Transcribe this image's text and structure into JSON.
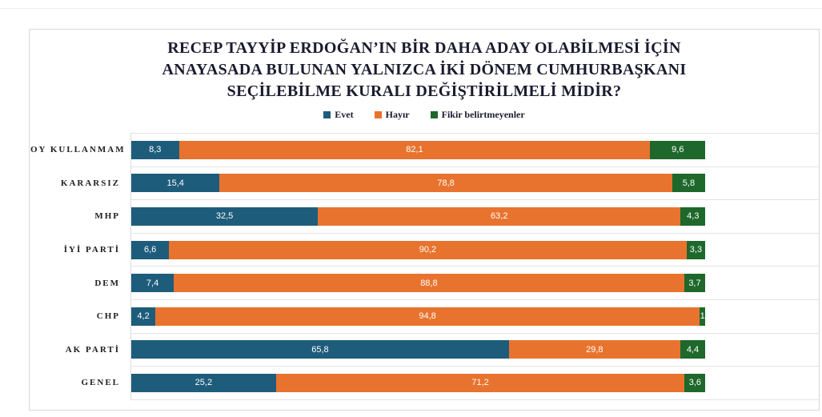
{
  "chart_data": {
    "type": "bar",
    "orientation": "horizontal",
    "stacked": true,
    "title": "RECEP TAYYİP ERDOĞAN’IN BİR DAHA ADAY OLABİLMESİ İÇİN ANAYASADA BULUNAN YALNIZCA İKİ DÖNEM CUMHURBAŞKANI SEÇİLEBİLME KURALI DEĞİŞTİRİLMELİ MİDİR?",
    "title_lines": [
      "RECEP TAYYİP ERDOĞAN’IN BİR DAHA ADAY OLABİLMESİ İÇİN",
      "ANAYASADA BULUNAN YALNIZCA İKİ DÖNEM CUMHURBAŞKANI",
      "SEÇİLEBİLME KURALI DEĞİŞTİRİLMELİ MİDİR?"
    ],
    "legend_position": "top",
    "grid": "category-separator-lines",
    "xlim": [
      0,
      120
    ],
    "categories": [
      "OY KULLANMAM",
      "KARARSIZ",
      "MHP",
      "İYİ PARTİ",
      "DEM",
      "CHP",
      "AK PARTİ",
      "GENEL"
    ],
    "series": [
      {
        "key": "evet",
        "name": "Evet",
        "color": "#1E5C7B",
        "values": [
          8.3,
          15.4,
          32.5,
          6.6,
          7.4,
          4.2,
          65.8,
          25.2
        ],
        "labels": [
          "8,3",
          "15,4",
          "32,5",
          "6,6",
          "7,4",
          "4,2",
          "65,8",
          "25,2"
        ]
      },
      {
        "key": "hayir",
        "name": "Hayır",
        "color": "#E8732E",
        "values": [
          82.1,
          78.8,
          63.2,
          90.2,
          88.8,
          94.8,
          29.8,
          71.2
        ],
        "labels": [
          "82,1",
          "78,8",
          "63,2",
          "90,2",
          "88,8",
          "94,8",
          "29,8",
          "71,2"
        ]
      },
      {
        "key": "fikir-belirtmeyenler",
        "name": "Fikir belirtmeyenler",
        "color": "#1E682C",
        "values": [
          9.6,
          5.8,
          4.3,
          3.3,
          3.7,
          1.0,
          4.4,
          3.6
        ],
        "labels": [
          "9,6",
          "5,8",
          "4,3",
          "3,3",
          "3,7",
          "1",
          "4,4",
          "3,6"
        ]
      }
    ]
  },
  "colors": {
    "panel_border": "#d8d8d8",
    "separator_line": "#e3e3e3",
    "axis_line": "#dcdcdc",
    "title_text": "#1b1b2f",
    "category_text": "#1f1f1f",
    "bar_value_text": "#ffffff"
  }
}
